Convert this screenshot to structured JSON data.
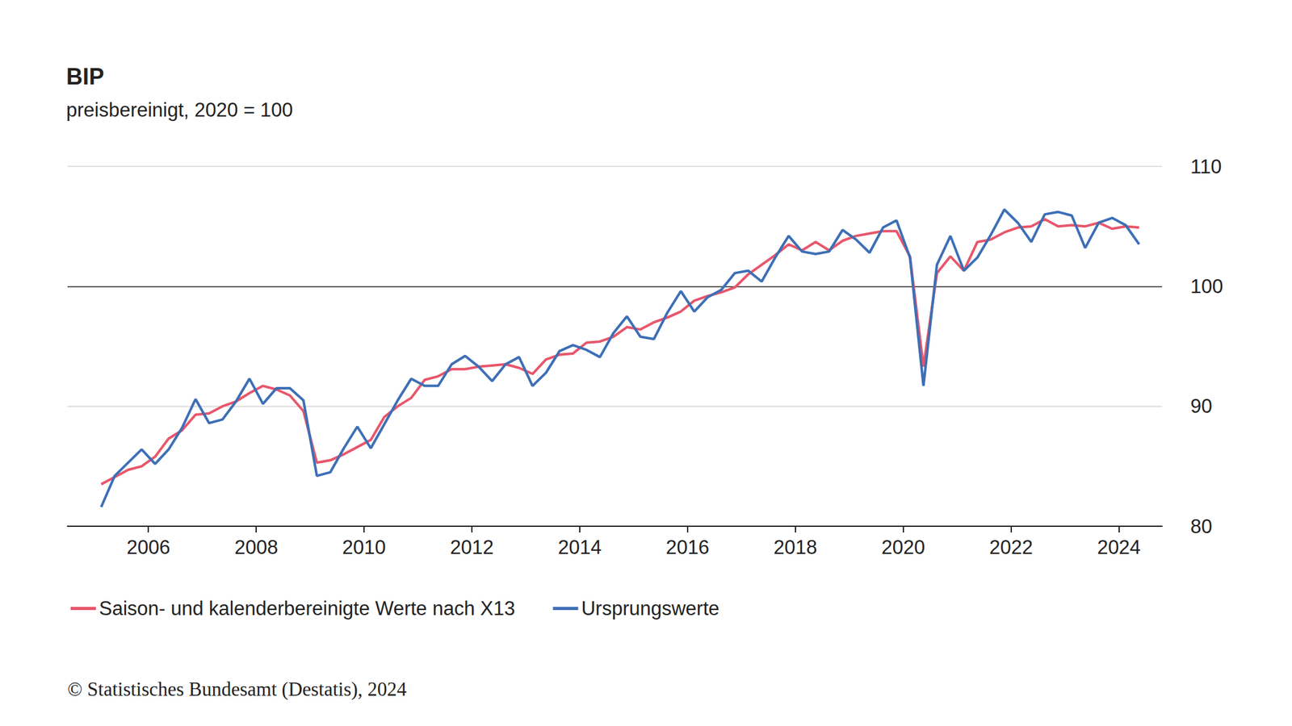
{
  "chart_data": {
    "type": "line",
    "title": "BIP",
    "subtitle": "preisbereinigt, 2020 = 100",
    "source": "© Statistisches Bundesamt (Destatis), 2024",
    "x": [
      2005.125,
      2005.375,
      2005.625,
      2005.875,
      2006.125,
      2006.375,
      2006.625,
      2006.875,
      2007.125,
      2007.375,
      2007.625,
      2007.875,
      2008.125,
      2008.375,
      2008.625,
      2008.875,
      2009.125,
      2009.375,
      2009.625,
      2009.875,
      2010.125,
      2010.375,
      2010.625,
      2010.875,
      2011.125,
      2011.375,
      2011.625,
      2011.875,
      2012.125,
      2012.375,
      2012.625,
      2012.875,
      2013.125,
      2013.375,
      2013.625,
      2013.875,
      2014.125,
      2014.375,
      2014.625,
      2014.875,
      2015.125,
      2015.375,
      2015.625,
      2015.875,
      2016.125,
      2016.375,
      2016.625,
      2016.875,
      2017.125,
      2017.375,
      2017.625,
      2017.875,
      2018.125,
      2018.375,
      2018.625,
      2018.875,
      2019.125,
      2019.375,
      2019.625,
      2019.875,
      2020.125,
      2020.375,
      2020.625,
      2020.875,
      2021.125,
      2021.375,
      2021.625,
      2021.875,
      2022.125,
      2022.375,
      2022.625,
      2022.875,
      2023.125,
      2023.375,
      2023.625,
      2023.875,
      2024.125,
      2024.375
    ],
    "series": [
      {
        "name": "Saison- und kalenderbereinigte Werte nach X13",
        "color": "#e8566b",
        "values": [
          83.5,
          84.1,
          84.7,
          85.0,
          85.8,
          87.3,
          88.0,
          89.3,
          89.4,
          90.0,
          90.4,
          91.1,
          91.7,
          91.4,
          90.9,
          89.6,
          85.3,
          85.5,
          86.0,
          86.6,
          87.2,
          89.1,
          90.0,
          90.7,
          92.2,
          92.5,
          93.1,
          93.1,
          93.3,
          93.4,
          93.5,
          93.2,
          92.7,
          93.9,
          94.3,
          94.4,
          95.3,
          95.4,
          95.8,
          96.6,
          96.4,
          97.0,
          97.4,
          97.9,
          98.8,
          99.2,
          99.5,
          99.9,
          101.0,
          101.8,
          102.6,
          103.5,
          103.0,
          103.7,
          103.0,
          103.8,
          104.2,
          104.4,
          104.6,
          104.6,
          102.5,
          93.3,
          101.1,
          102.5,
          101.3,
          103.7,
          103.9,
          104.5,
          104.9,
          105.0,
          105.6,
          105.0,
          105.1,
          105.0,
          105.3,
          104.8,
          105.0,
          104.9
        ]
      },
      {
        "name": "Ursprungswerte",
        "color": "#3d6fb6",
        "values": [
          81.6,
          84.2,
          85.3,
          86.4,
          85.2,
          86.4,
          88.2,
          90.6,
          88.6,
          88.9,
          90.4,
          92.3,
          90.2,
          91.5,
          91.5,
          90.5,
          84.2,
          84.5,
          86.5,
          88.3,
          86.5,
          88.5,
          90.5,
          92.3,
          91.7,
          91.7,
          93.5,
          94.2,
          93.3,
          92.1,
          93.5,
          94.1,
          91.7,
          92.8,
          94.6,
          95.1,
          94.7,
          94.1,
          96.1,
          97.5,
          95.8,
          95.6,
          97.8,
          99.6,
          97.9,
          99.1,
          99.7,
          101.1,
          101.3,
          100.4,
          102.4,
          104.2,
          102.9,
          102.7,
          102.9,
          104.7,
          103.9,
          102.8,
          104.9,
          105.5,
          102.4,
          91.7,
          101.8,
          104.2,
          101.3,
          102.4,
          104.3,
          106.4,
          105.3,
          103.7,
          106.0,
          106.2,
          105.9,
          103.2,
          105.3,
          105.7,
          105.1,
          103.5
        ]
      }
    ],
    "xlim": [
      2004.5,
      2024.8
    ],
    "xticks": [
      2006,
      2008,
      2010,
      2012,
      2014,
      2016,
      2018,
      2020,
      2022,
      2024
    ],
    "ylim": [
      80,
      110
    ],
    "yticks": [
      80,
      90,
      100,
      110
    ],
    "grid": true,
    "legend": "bottom"
  }
}
